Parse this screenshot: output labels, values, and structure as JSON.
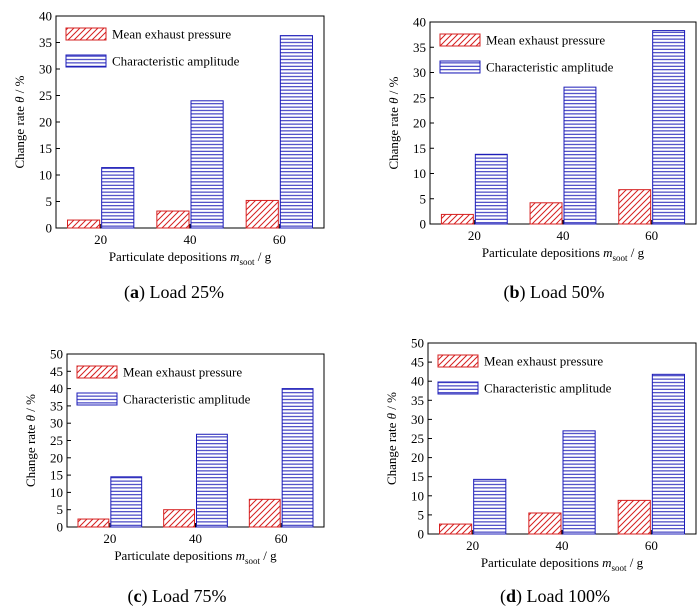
{
  "legend_labels": [
    "Mean exhaust pressure",
    "Characteristic amplitude"
  ],
  "colors": {
    "mean": "#d62020",
    "amplitude": "#1c1cb8",
    "axis": "#000000"
  },
  "axis_text": {
    "xlabel": "Particulate depositions",
    "xvar": "m",
    "xsub": "soot",
    "xunit": "/ g",
    "ylabel": "Change rate",
    "yvar": "θ",
    "yunit": "/ %"
  },
  "chart_data": [
    {
      "type": "bar",
      "caption_letter": "a",
      "caption_text": "Load 25%",
      "categories": [
        "20",
        "40",
        "60"
      ],
      "series": [
        {
          "name": "Mean exhaust pressure",
          "values": [
            1.5,
            3.2,
            5.2
          ]
        },
        {
          "name": "Characteristic amplitude",
          "values": [
            11.4,
            24.0,
            36.3
          ]
        }
      ],
      "ylim": [
        0,
        40
      ],
      "yticks": [
        0,
        5,
        10,
        15,
        20,
        25,
        30,
        35,
        40
      ],
      "legend": "top-left"
    },
    {
      "type": "bar",
      "caption_letter": "b",
      "caption_text": "Load 50%",
      "categories": [
        "20",
        "40",
        "60"
      ],
      "series": [
        {
          "name": "Mean exhaust pressure",
          "values": [
            1.9,
            4.2,
            6.8
          ]
        },
        {
          "name": "Characteristic amplitude",
          "values": [
            13.8,
            27.1,
            38.3
          ]
        }
      ],
      "ylim": [
        0,
        40
      ],
      "yticks": [
        0,
        5,
        10,
        15,
        20,
        25,
        30,
        35,
        40
      ],
      "legend": "top-left"
    },
    {
      "type": "bar",
      "caption_letter": "c",
      "caption_text": "Load 75%",
      "categories": [
        "20",
        "40",
        "60"
      ],
      "series": [
        {
          "name": "Mean exhaust pressure",
          "values": [
            2.3,
            5.0,
            8.0
          ]
        },
        {
          "name": "Characteristic amplitude",
          "values": [
            14.5,
            26.8,
            40.0
          ]
        }
      ],
      "ylim": [
        0,
        50
      ],
      "yticks": [
        0,
        5,
        10,
        15,
        20,
        25,
        30,
        35,
        40,
        45,
        50
      ],
      "legend": "top-left"
    },
    {
      "type": "bar",
      "caption_letter": "d",
      "caption_text": "Load 100%",
      "categories": [
        "20",
        "40",
        "60"
      ],
      "series": [
        {
          "name": "Mean exhaust pressure",
          "values": [
            2.6,
            5.5,
            8.8
          ]
        },
        {
          "name": "Characteristic amplitude",
          "values": [
            14.3,
            27.0,
            41.8
          ]
        }
      ],
      "ylim": [
        0,
        50
      ],
      "yticks": [
        0,
        5,
        10,
        15,
        20,
        25,
        30,
        35,
        40,
        45,
        50
      ],
      "legend": "top-left"
    }
  ]
}
